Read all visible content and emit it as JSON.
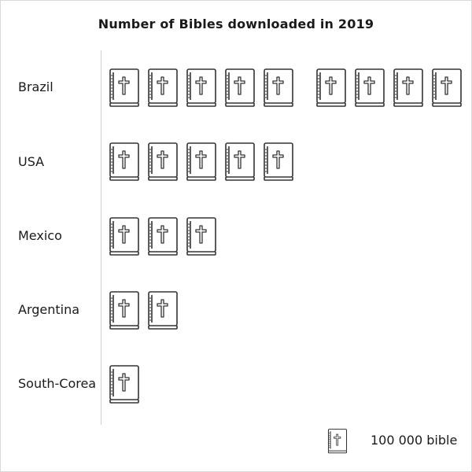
{
  "chart_data": {
    "type": "pictograph",
    "title": "Number of Bibles downloaded in 2019",
    "categories": [
      "Brazil",
      "USA",
      "Mexico",
      "Argentina",
      "South-Corea"
    ],
    "values": [
      900000,
      500000,
      300000,
      200000,
      100000
    ],
    "icon_counts": [
      9,
      5,
      3,
      2,
      1
    ],
    "icon": "bible-icon",
    "unit": 100000,
    "legend": {
      "label": "100 000 bible",
      "icon": "bible-icon"
    },
    "colors": {
      "stroke": "#333333",
      "fill": "#ffffff"
    }
  }
}
